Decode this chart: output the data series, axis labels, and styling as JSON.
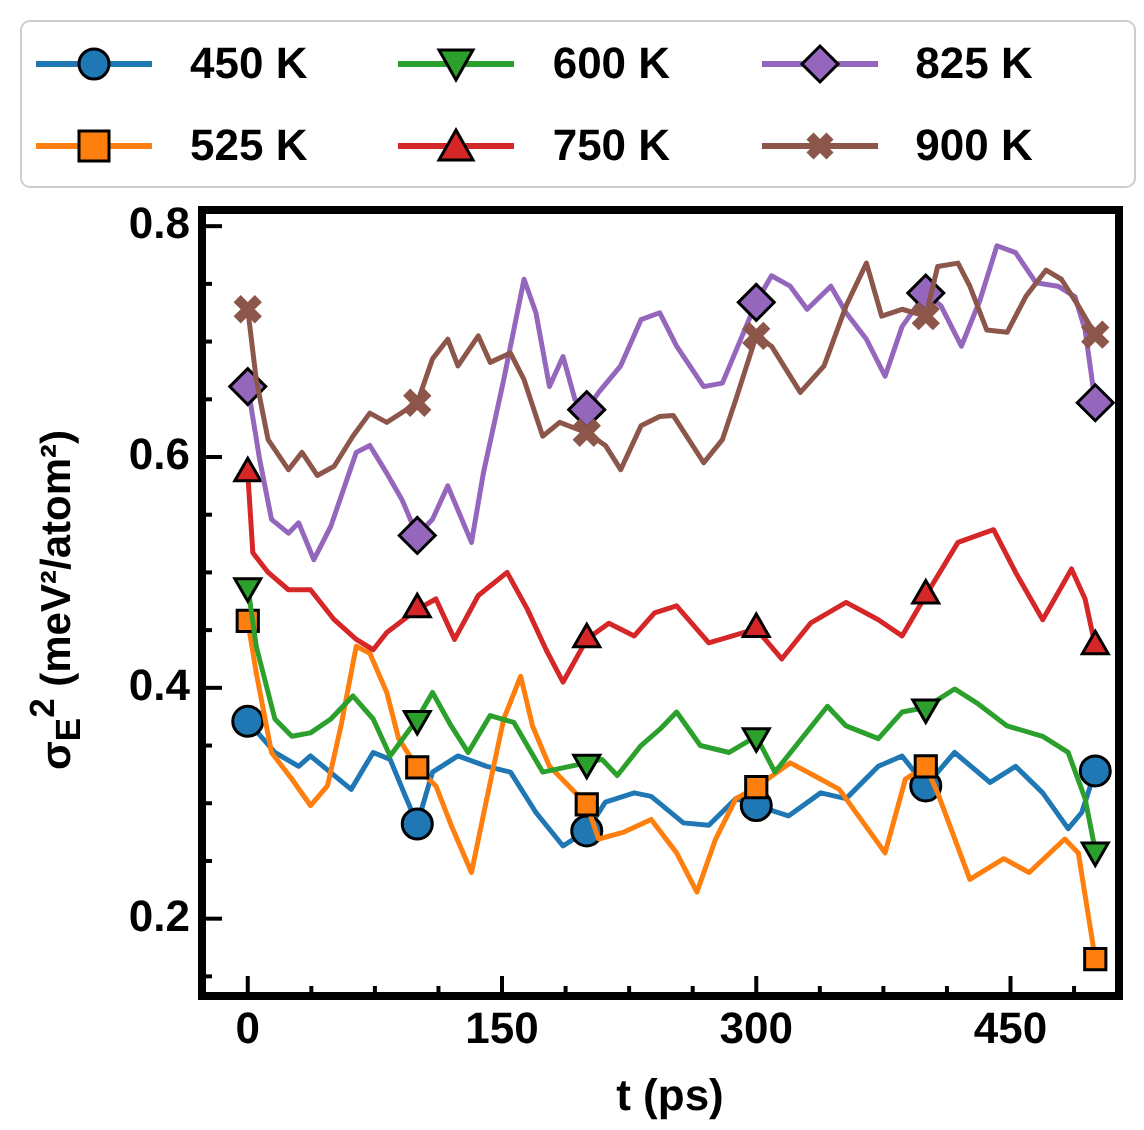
{
  "chart_data": {
    "type": "line",
    "xlabel": "t (ps)",
    "ylabel": "σ$_{E}$$^{2}$ (meV²/atom²)",
    "xlim": [
      -27,
      514
    ],
    "ylim": [
      0.133,
      0.814
    ],
    "xticks": [
      0,
      {
        "value": 37.5,
        "label": null
      },
      {
        "value": 75,
        "label": null
      },
      {
        "value": 112.5,
        "label": null
      },
      150,
      {
        "value": 187.5,
        "label": null
      },
      {
        "value": 225,
        "label": null
      },
      {
        "value": 262.5,
        "label": null
      },
      300,
      {
        "value": 337.5,
        "label": null
      },
      {
        "value": 375,
        "label": null
      },
      {
        "value": 412.5,
        "label": null
      },
      450,
      {
        "value": 487.5,
        "label": null
      }
    ],
    "yticks": [
      {
        "value": 0.15,
        "label": null
      },
      0.2,
      {
        "value": 0.25,
        "label": null
      },
      {
        "value": 0.3,
        "label": null
      },
      {
        "value": 0.35,
        "label": null
      },
      0.4,
      {
        "value": 0.45,
        "label": null
      },
      {
        "value": 0.5,
        "label": null
      },
      {
        "value": 0.55,
        "label": null
      },
      0.6,
      {
        "value": 0.65,
        "label": null
      },
      {
        "value": 0.7,
        "label": null
      },
      {
        "value": 0.75,
        "label": null
      },
      0.8
    ],
    "grid": false,
    "legend": "top",
    "line_style": "solid",
    "series": [
      {
        "name": "450 K",
        "color": "#1f77b4",
        "marker": "none",
        "x": [
          0,
          16,
          30,
          37,
          61,
          74,
          84,
          93,
          100,
          109,
          124,
          141,
          155,
          170,
          186,
          200,
          211,
          228,
          238,
          257,
          272,
          288,
          300,
          319,
          338,
          353,
          372,
          386,
          400,
          417,
          438,
          453,
          469,
          484,
          492,
          500
        ],
        "values": [
          0.371,
          0.344,
          0.332,
          0.341,
          0.312,
          0.344,
          0.338,
          0.306,
          0.282,
          0.327,
          0.341,
          0.332,
          0.327,
          0.292,
          0.263,
          0.276,
          0.301,
          0.309,
          0.306,
          0.283,
          0.281,
          0.304,
          0.298,
          0.289,
          0.309,
          0.304,
          0.332,
          0.341,
          0.315,
          0.344,
          0.318,
          0.332,
          0.309,
          0.278,
          0.292,
          0.328
        ]
      },
      {
        "type": "scatter",
        "color": "#1f77b4",
        "marker": "circle",
        "x": [
          0,
          100,
          200,
          300,
          400,
          500
        ],
        "values": [
          0.371,
          0.282,
          0.276,
          0.298,
          0.315,
          0.328
        ]
      },
      {
        "name": "525 K",
        "color": "#ff7f0e",
        "marker": "none",
        "x": [
          0,
          5,
          14,
          26,
          37,
          47,
          55,
          64,
          72,
          82,
          89,
          100,
          111,
          120,
          132,
          141,
          151,
          161,
          168,
          178,
          200,
          207,
          222,
          238,
          253,
          265,
          276,
          288,
          300,
          320,
          334,
          349,
          376,
          388,
          400,
          407,
          426,
          446,
          461,
          482,
          490,
          495,
          500
        ],
        "values": [
          0.458,
          0.413,
          0.344,
          0.321,
          0.298,
          0.315,
          0.367,
          0.436,
          0.43,
          0.396,
          0.356,
          0.331,
          0.315,
          0.281,
          0.24,
          0.304,
          0.373,
          0.41,
          0.367,
          0.332,
          0.299,
          0.269,
          0.275,
          0.286,
          0.257,
          0.223,
          0.269,
          0.304,
          0.314,
          0.335,
          0.324,
          0.312,
          0.257,
          0.321,
          0.332,
          0.309,
          0.234,
          0.252,
          0.24,
          0.269,
          0.257,
          0.211,
          0.165
        ]
      },
      {
        "type": "scatter",
        "color": "#ff7f0e",
        "marker": "square",
        "x": [
          0,
          100,
          200,
          300,
          400,
          500
        ],
        "values": [
          0.458,
          0.331,
          0.299,
          0.314,
          0.332,
          0.165
        ]
      },
      {
        "name": "600 K",
        "color": "#2ca02c",
        "marker": "none",
        "x": [
          0,
          5,
          16,
          26,
          37,
          49,
          62,
          74,
          84,
          100,
          109,
          120,
          130,
          143,
          157,
          174,
          200,
          209,
          218,
          232,
          243,
          253,
          267,
          284,
          300,
          311,
          342,
          353,
          372,
          386,
          400,
          417,
          430,
          448,
          469,
          484,
          494,
          500
        ],
        "values": [
          0.488,
          0.436,
          0.373,
          0.358,
          0.361,
          0.373,
          0.393,
          0.373,
          0.341,
          0.373,
          0.396,
          0.367,
          0.344,
          0.376,
          0.37,
          0.327,
          0.335,
          0.338,
          0.324,
          0.35,
          0.364,
          0.379,
          0.35,
          0.344,
          0.358,
          0.327,
          0.384,
          0.367,
          0.356,
          0.379,
          0.383,
          0.399,
          0.387,
          0.367,
          0.358,
          0.344,
          0.304,
          0.259
        ]
      },
      {
        "type": "scatter",
        "color": "#2ca02c",
        "marker": "triangle_down",
        "x": [
          0,
          100,
          200,
          300,
          400,
          500
        ],
        "values": [
          0.488,
          0.373,
          0.335,
          0.358,
          0.383,
          0.259
        ]
      },
      {
        "name": "750 K",
        "color": "#d62728",
        "marker": "none",
        "x": [
          0,
          3,
          12,
          24,
          37,
          51,
          64,
          74,
          82,
          100,
          111,
          122,
          136,
          153,
          165,
          176,
          186,
          200,
          213,
          228,
          240,
          253,
          272,
          300,
          315,
          332,
          353,
          372,
          386,
          400,
          419,
          440,
          453,
          469,
          486,
          494,
          500
        ],
        "values": [
          0.586,
          0.517,
          0.5,
          0.485,
          0.485,
          0.459,
          0.442,
          0.433,
          0.448,
          0.468,
          0.477,
          0.442,
          0.48,
          0.5,
          0.468,
          0.433,
          0.405,
          0.442,
          0.456,
          0.445,
          0.465,
          0.471,
          0.439,
          0.451,
          0.425,
          0.456,
          0.474,
          0.459,
          0.445,
          0.48,
          0.526,
          0.537,
          0.5,
          0.459,
          0.503,
          0.477,
          0.436
        ]
      },
      {
        "type": "scatter",
        "color": "#d62728",
        "marker": "triangle",
        "x": [
          0,
          100,
          200,
          300,
          400,
          500
        ],
        "values": [
          0.586,
          0.468,
          0.442,
          0.451,
          0.48,
          0.436
        ]
      },
      {
        "name": "825 K",
        "color": "#9467bd",
        "marker": "none",
        "x": [
          0,
          7,
          14,
          24,
          30,
          39,
          49,
          64,
          72,
          82,
          91,
          100,
          109,
          118,
          132,
          139,
          151,
          163,
          170,
          178,
          186,
          193,
          200,
          207,
          220,
          232,
          243,
          253,
          269,
          280,
          300,
          309,
          320,
          330,
          344,
          353,
          365,
          376,
          386,
          400,
          409,
          421,
          432,
          442,
          453,
          465,
          478,
          488,
          494,
          500
        ],
        "values": [
          0.661,
          0.598,
          0.546,
          0.534,
          0.543,
          0.511,
          0.54,
          0.604,
          0.61,
          0.586,
          0.563,
          0.532,
          0.546,
          0.575,
          0.526,
          0.586,
          0.667,
          0.754,
          0.725,
          0.661,
          0.687,
          0.65,
          0.641,
          0.656,
          0.679,
          0.719,
          0.725,
          0.696,
          0.661,
          0.664,
          0.734,
          0.757,
          0.748,
          0.728,
          0.748,
          0.725,
          0.702,
          0.67,
          0.713,
          0.742,
          0.731,
          0.696,
          0.736,
          0.783,
          0.777,
          0.751,
          0.748,
          0.739,
          0.71,
          0.647
        ]
      },
      {
        "type": "scatter",
        "color": "#9467bd",
        "marker": "diamond",
        "x": [
          0,
          100,
          200,
          300,
          400,
          500
        ],
        "values": [
          0.661,
          0.532,
          0.641,
          0.734,
          0.742,
          0.647
        ]
      },
      {
        "name": "900 K",
        "color": "#8c564b",
        "marker": "none",
        "x": [
          0,
          5,
          12,
          24,
          32,
          41,
          51,
          62,
          72,
          82,
          100,
          109,
          118,
          124,
          136,
          143,
          155,
          163,
          174,
          184,
          200,
          211,
          220,
          232,
          243,
          251,
          269,
          280,
          288,
          300,
          309,
          326,
          340,
          353,
          365,
          374,
          386,
          400,
          407,
          419,
          426,
          436,
          448,
          459,
          471,
          480,
          490,
          500
        ],
        "values": [
          0.728,
          0.667,
          0.615,
          0.589,
          0.604,
          0.584,
          0.592,
          0.618,
          0.638,
          0.63,
          0.647,
          0.685,
          0.702,
          0.679,
          0.705,
          0.682,
          0.69,
          0.667,
          0.618,
          0.63,
          0.621,
          0.61,
          0.589,
          0.627,
          0.635,
          0.636,
          0.595,
          0.615,
          0.65,
          0.705,
          0.696,
          0.656,
          0.679,
          0.731,
          0.768,
          0.722,
          0.728,
          0.722,
          0.765,
          0.768,
          0.748,
          0.71,
          0.708,
          0.739,
          0.762,
          0.754,
          0.731,
          0.706
        ]
      },
      {
        "type": "scatter",
        "color": "#8c564b",
        "marker": "cross",
        "x": [
          0,
          100,
          200,
          300,
          400,
          500
        ],
        "values": [
          0.728,
          0.647,
          0.621,
          0.705,
          0.722,
          0.706
        ]
      }
    ]
  }
}
